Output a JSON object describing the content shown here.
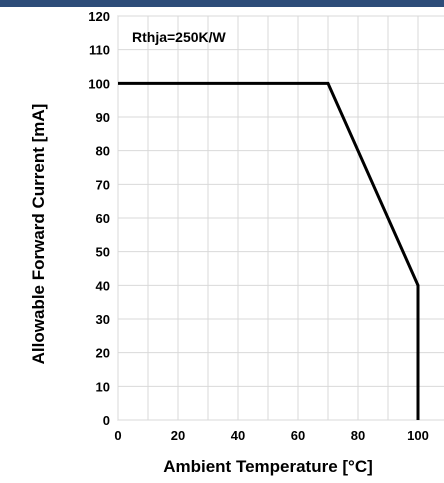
{
  "theme": {
    "top_bar_color": "#2e4d79",
    "line_color": "#000000",
    "grid_color": "#d9d9d9"
  },
  "chart_data": {
    "type": "line",
    "x": [
      0,
      70,
      100,
      100
    ],
    "y": [
      100,
      100,
      40,
      0
    ],
    "xlabel": "Ambient Temperature [°C]",
    "ylabel": "Allowable Forward Current [mA]",
    "xlim": [
      0,
      110
    ],
    "ylim": [
      0,
      120
    ],
    "xticks": [
      0,
      20,
      40,
      60,
      80,
      100
    ],
    "yticks": [
      0,
      10,
      20,
      30,
      40,
      50,
      60,
      70,
      80,
      90,
      100,
      110,
      120
    ],
    "annotation": "Rthja=250K/W",
    "grid": true,
    "legend": "none"
  }
}
